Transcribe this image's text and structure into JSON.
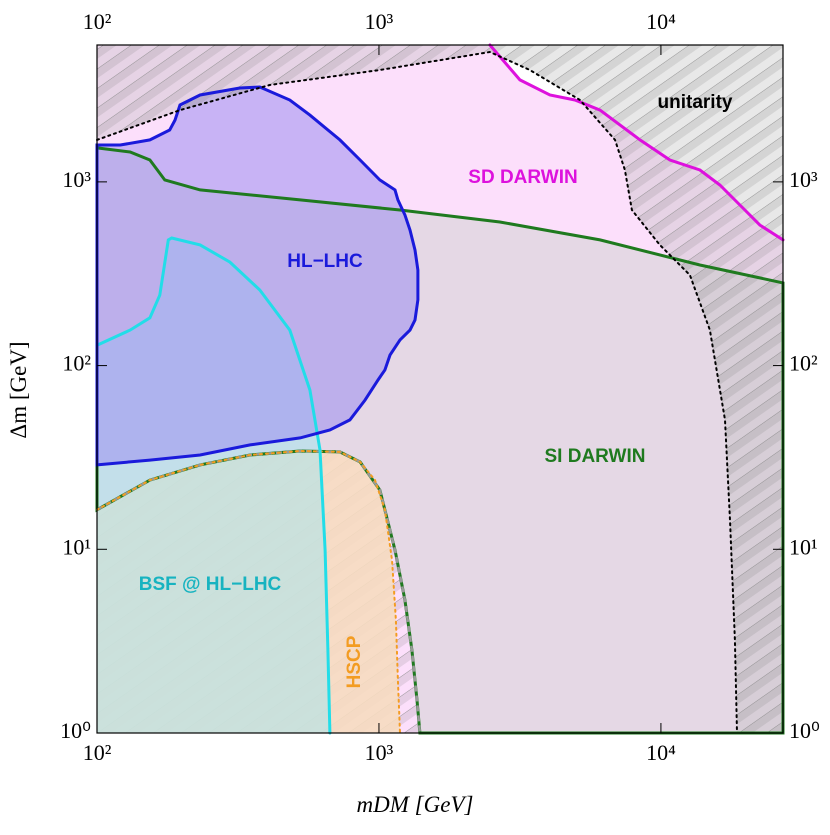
{
  "chart_data": {
    "type": "area",
    "xlabel": "mDM [GeV]",
    "ylabel": "Δm [GeV]",
    "xscale": "log",
    "yscale": "log",
    "xlim": [
      100,
      27100
    ],
    "ylim": [
      1,
      5560
    ],
    "xticks": [
      {
        "value": 100,
        "label": "10²"
      },
      {
        "value": 1000,
        "label": "10³"
      },
      {
        "value": 10000,
        "label": "10⁴"
      }
    ],
    "yticks": [
      {
        "value": 1,
        "label": "10⁰"
      },
      {
        "value": 10,
        "label": "10¹"
      },
      {
        "value": 100,
        "label": "10²"
      },
      {
        "value": 1000,
        "label": "10³"
      }
    ],
    "series": [
      {
        "name": "SD DARWIN",
        "color": "#dd11dd",
        "fill": "#fcdcfb",
        "fill_to": "below",
        "style": "solid",
        "x": [
          2475,
          3162,
          4038,
          4955,
          6081,
          8430,
          10760,
          13750,
          16190,
          19060,
          22440,
          27100
        ],
        "y": [
          5560,
          3590,
          2970,
          2790,
          2460,
          1692,
          1316,
          1161,
          962,
          748,
          582,
          483
        ]
      },
      {
        "name": "SI DARWIN",
        "color": "#1f7a1f",
        "fill": "#e2d7e2",
        "fill_to": "between",
        "style": "solid",
        "x": [
          100,
          131,
          154,
          174,
          232,
          525,
          1187,
          2685,
          6081,
          13750,
          27100
        ],
        "y": [
          1530,
          1455,
          1316,
          1024,
          904,
          798,
          703,
          605,
          483,
          353,
          282
        ],
        "lower_x": [
          100,
          154,
          232,
          349,
          525,
          727,
          857,
          1008,
          1140,
          1236,
          1309,
          1364,
          1397
        ],
        "lower_y": [
          16.4,
          23.8,
          28.8,
          32.6,
          34.3,
          33.9,
          29.9,
          21.0,
          9.9,
          5.3,
          2.83,
          1.51,
          1
        ]
      },
      {
        "name": "HSCP",
        "color": "#f39c22",
        "fill": "#f6dcc0",
        "fill_to": "lower-left",
        "style": "dotted",
        "x": [
          100,
          154,
          232,
          349,
          525,
          727,
          857,
          968,
          1050,
          1112,
          1148,
          1167,
          1187
        ],
        "y": [
          16.4,
          23.8,
          28.8,
          32.6,
          34.3,
          33.9,
          29.9,
          23.8,
          16.4,
          8.75,
          4.12,
          1.94,
          1
        ]
      },
      {
        "name": "BSF @ HL−LHC",
        "color": "#22dde8",
        "fill": "#a8e6ee",
        "fill_to": "lower-left",
        "style": "solid",
        "x": [
          100,
          131,
          154,
          167,
          179,
          184,
          232,
          296,
          378,
          483,
          569,
          618,
          644,
          659,
          670
        ],
        "y": [
          129,
          156,
          182,
          242,
          483,
          495,
          454,
          366,
          258,
          156,
          73.6,
          34.7,
          9.9,
          2.83,
          1
        ]
      },
      {
        "name": "HL−LHC",
        "color": "#1a1adb",
        "fill": "#9c8ef0",
        "fill_to": "closed",
        "style": "solid",
        "x": [
          100,
          154,
          232,
          349,
          525,
          670,
          789,
          892,
          992,
          1050,
          1094,
          1187,
          1288,
          1342,
          1374,
          1374,
          1342,
          1288,
          1236,
          1167,
          1140,
          1008,
          857,
          727,
          569,
          483,
          378,
          321,
          232,
          197,
          189,
          181,
          154,
          121,
          100
        ],
        "y": [
          28.8,
          30.6,
          32.6,
          37.0,
          40.4,
          44.6,
          50.6,
          64.9,
          83.5,
          94.6,
          114,
          138,
          156,
          177,
          228,
          331,
          426,
          547,
          661,
          798,
          904,
          1024,
          1316,
          1692,
          2310,
          2790,
          3285,
          3245,
          2970,
          2620,
          2170,
          1917,
          1692,
          1588,
          1588
        ]
      },
      {
        "name": "unitarity",
        "color": "#000000",
        "fill": "#bdbdbd",
        "fill_to": "above",
        "style": "dotted",
        "x": [
          100,
          197,
          411,
          1008,
          2475,
          3428,
          5163,
          6871,
          7452,
          7890,
          9910,
          12670,
          14920,
          16870,
          17580,
          18300,
          18620
        ],
        "y": [
          1692,
          2460,
          3370,
          4065,
          5090,
          4065,
          2790,
          1692,
          1161,
          703,
          454,
          311,
          156,
          50.6,
          14.4,
          3.21,
          1
        ]
      }
    ]
  }
}
